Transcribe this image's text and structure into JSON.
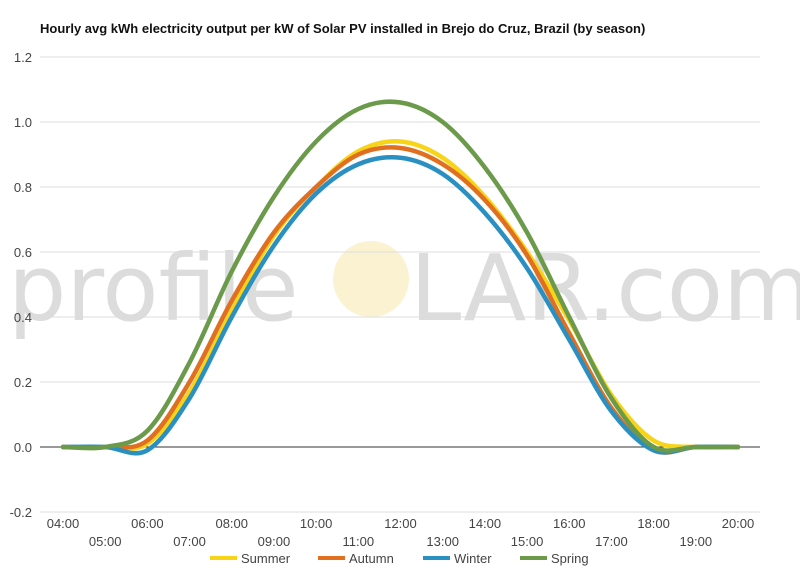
{
  "chart_data": {
    "type": "line",
    "title": "Hourly avg kWh electricity output per kW of Solar PV installed in Brejo do Cruz, Brazil (by season)",
    "xlabel": "",
    "ylabel": "",
    "ylim": [
      -0.2,
      1.2
    ],
    "yticks": [
      "-0.2",
      "0.0",
      "0.2",
      "0.4",
      "0.6",
      "0.8",
      "1.0",
      "1.2"
    ],
    "ytick_values": [
      -0.2,
      0.0,
      0.2,
      0.4,
      0.6,
      0.8,
      1.0,
      1.2
    ],
    "categories": [
      "04:00",
      "05:00",
      "06:00",
      "07:00",
      "08:00",
      "09:00",
      "10:00",
      "11:00",
      "12:00",
      "13:00",
      "14:00",
      "15:00",
      "16:00",
      "17:00",
      "18:00",
      "19:00",
      "20:00"
    ],
    "grid": true,
    "legend_position": "bottom",
    "series": [
      {
        "name": "Summer",
        "color": "#f7d417",
        "values": [
          0.0,
          0.0,
          0.01,
          0.17,
          0.42,
          0.65,
          0.8,
          0.91,
          0.94,
          0.89,
          0.77,
          0.6,
          0.39,
          0.16,
          0.02,
          0.0,
          0.0
        ]
      },
      {
        "name": "Autumn",
        "color": "#e07020",
        "values": [
          0.0,
          0.0,
          0.02,
          0.2,
          0.45,
          0.66,
          0.8,
          0.9,
          0.92,
          0.87,
          0.76,
          0.59,
          0.35,
          0.12,
          -0.01,
          0.0,
          0.0
        ]
      },
      {
        "name": "Winter",
        "color": "#2a8fc1",
        "values": [
          0.0,
          0.0,
          -0.01,
          0.15,
          0.4,
          0.62,
          0.78,
          0.87,
          0.89,
          0.84,
          0.72,
          0.55,
          0.33,
          0.11,
          -0.01,
          0.0,
          0.0
        ]
      },
      {
        "name": "Spring",
        "color": "#6a9a4a",
        "values": [
          0.0,
          0.0,
          0.05,
          0.26,
          0.54,
          0.77,
          0.94,
          1.04,
          1.06,
          1.0,
          0.86,
          0.66,
          0.4,
          0.15,
          0.0,
          0.0,
          0.0
        ]
      }
    ]
  },
  "watermark": {
    "left": "profile",
    "right": "LAR.com"
  }
}
